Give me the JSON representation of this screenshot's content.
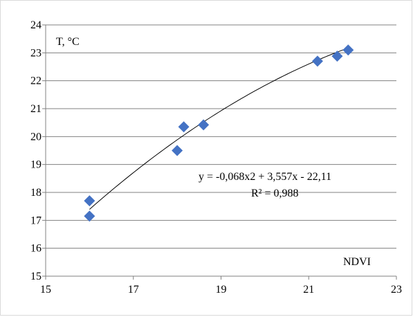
{
  "chart_data": {
    "type": "scatter",
    "xlabel": "NDVI",
    "ylabel": "T, °C",
    "xlim": [
      15,
      23
    ],
    "ylim": [
      15,
      24
    ],
    "x_ticks": [
      15,
      17,
      19,
      21,
      23
    ],
    "y_ticks": [
      15,
      16,
      17,
      18,
      19,
      20,
      21,
      22,
      23,
      24
    ],
    "grid": "horizontal",
    "points": [
      {
        "x": 16.0,
        "y": 17.7
      },
      {
        "x": 16.0,
        "y": 17.15
      },
      {
        "x": 18.0,
        "y": 19.5
      },
      {
        "x": 18.15,
        "y": 20.35
      },
      {
        "x": 18.6,
        "y": 20.42
      },
      {
        "x": 21.2,
        "y": 22.7
      },
      {
        "x": 21.65,
        "y": 22.88
      },
      {
        "x": 21.9,
        "y": 23.1
      }
    ],
    "marker_color": "#4472c4",
    "trendline": {
      "type": "polynomial",
      "coefficients": [
        -0.068,
        3.557,
        -22.11
      ],
      "x_range": [
        16.0,
        21.9
      ],
      "color": "#000000",
      "equation_text": "y = -0,068x2 + 3,557x - 22,11",
      "r2_text": "R² = 0,988"
    }
  }
}
